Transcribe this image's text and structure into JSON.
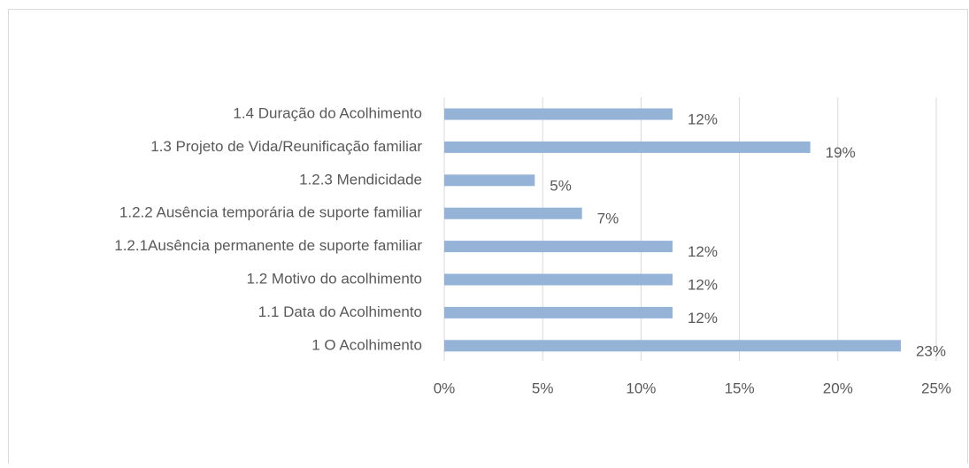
{
  "chart_data": {
    "type": "hbar",
    "categories": [
      "1.4 Duração do Acolhimento",
      "1.3 Projeto de Vida/Reunificação familiar",
      "1.2.3 Mendicidade",
      "1.2.2 Ausência temporária de suporte familiar",
      "1.2.1Ausência permanente de suporte familiar",
      "1.2 Motivo do acolhimento",
      "1.1 Data do Acolhimento",
      "1 O Acolhimento"
    ],
    "values": [
      11.6,
      18.6,
      4.6,
      7.0,
      11.6,
      11.6,
      11.6,
      23.2
    ],
    "value_labels": [
      "12%",
      "19%",
      "5%",
      "7%",
      "12%",
      "12%",
      "12%",
      "23%"
    ],
    "color": "#95b3d7",
    "xlim": [
      0,
      25
    ],
    "xticks": [
      {
        "value": 0,
        "label": "0%"
      },
      {
        "value": 5,
        "label": "5%"
      },
      {
        "value": 10,
        "label": "10%"
      },
      {
        "value": 15,
        "label": "15%"
      },
      {
        "value": 20,
        "label": "20%"
      },
      {
        "value": 25,
        "label": "25%"
      }
    ],
    "grid": true
  }
}
